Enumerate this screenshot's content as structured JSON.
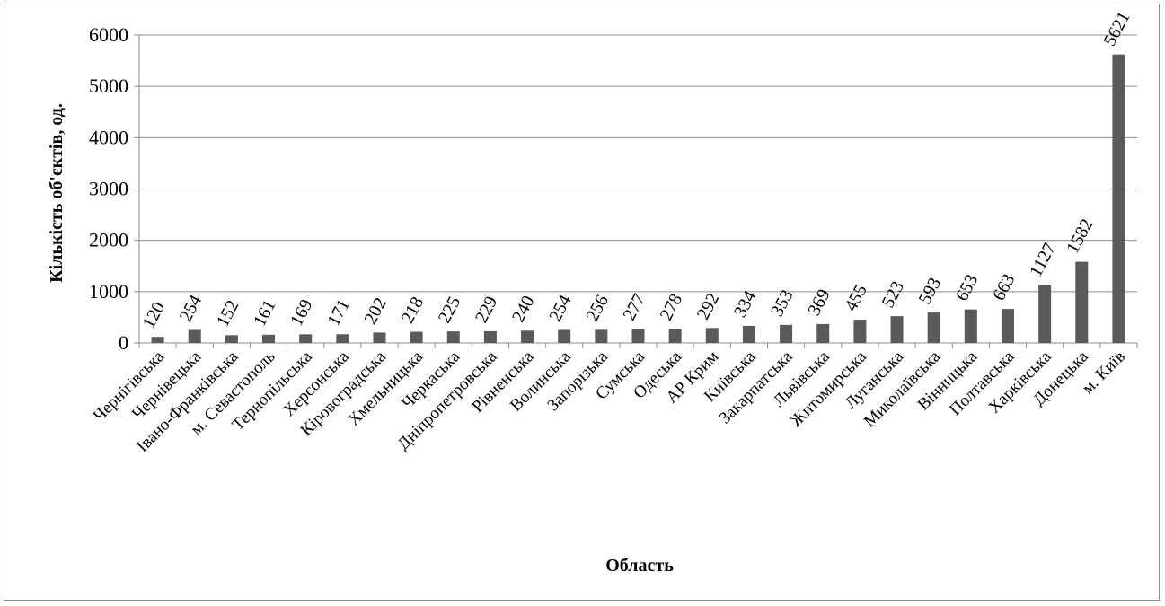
{
  "chart_data": {
    "type": "bar",
    "title": "",
    "xlabel": "Область",
    "ylabel": "Кількість об'єктів, од.",
    "ylim": [
      0,
      6000
    ],
    "yticks": [
      0,
      1000,
      2000,
      3000,
      4000,
      5000,
      6000
    ],
    "grid": true,
    "legend": "none",
    "colors": {
      "bar": "#5a5a5a",
      "grid": "#8c8c8c",
      "axis": "#8c8c8c"
    },
    "categories": [
      "Чернігівська",
      "Чернівецька",
      "Івано-Франківська",
      "м. Севастополь",
      "Тернопільська",
      "Херсонська",
      "Кіровоградська",
      "Хмельницька",
      "Черкаська",
      "Дніпропетровська",
      "Рівненська",
      "Волинська",
      "Запорізька",
      "Сумська",
      "Одеська",
      "АР Крим",
      "Київська",
      "Закарпатська",
      "Львівська",
      "Житомирська",
      "Луганська",
      "Миколаївська",
      "Вінницька",
      "Полтавська",
      "Харківська",
      "Донецька",
      "м. Київ"
    ],
    "values": [
      120,
      254,
      152,
      161,
      169,
      171,
      202,
      218,
      225,
      229,
      240,
      254,
      256,
      277,
      278,
      292,
      334,
      353,
      369,
      455,
      523,
      593,
      653,
      663,
      1127,
      1582,
      5621
    ],
    "data_labels": [
      "120",
      "254",
      "152",
      "161",
      "169",
      "171",
      "202",
      "218",
      "225",
      "229",
      "240",
      "254",
      "256",
      "277",
      "278",
      "292",
      "334",
      "353",
      "369",
      "455",
      "523",
      "593",
      "653",
      "663",
      "1127",
      "1582",
      "5621"
    ]
  }
}
